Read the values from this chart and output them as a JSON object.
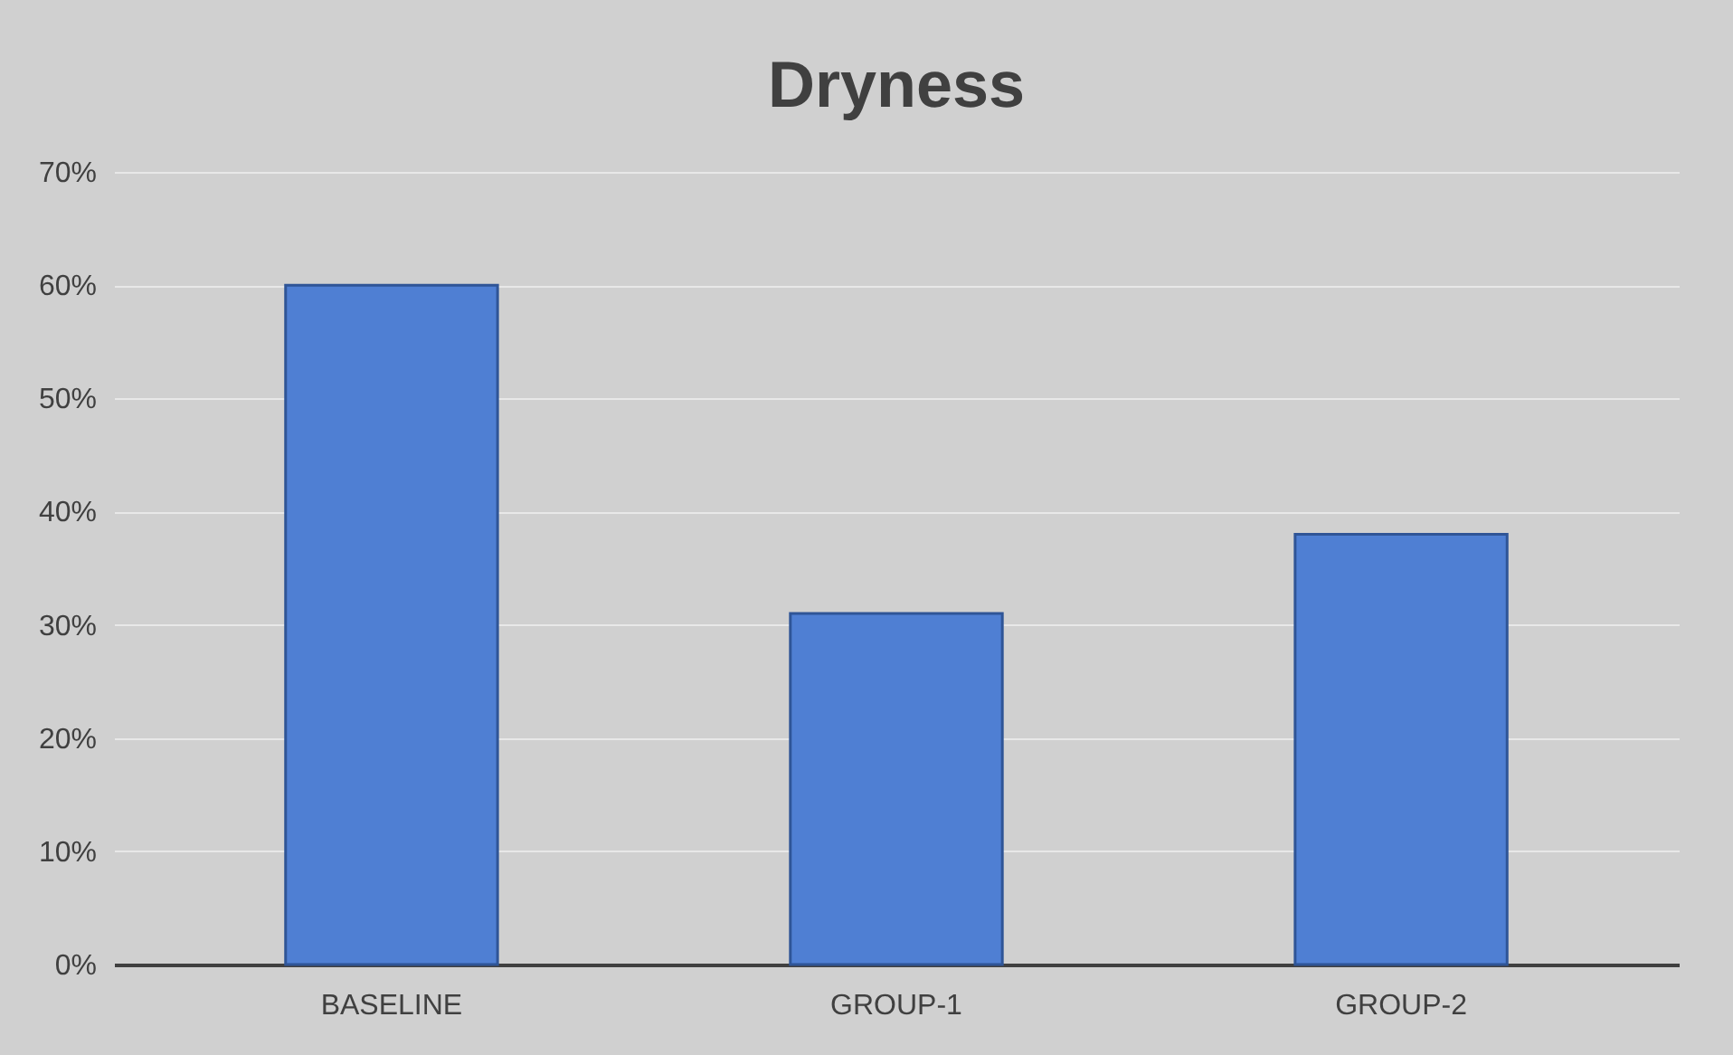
{
  "chart_data": {
    "type": "bar",
    "title": "Dryness",
    "categories": [
      "BASELINE",
      "GROUP-1",
      "GROUP-2"
    ],
    "values": [
      0.6,
      0.31,
      0.38
    ],
    "color": "#4f7fd3",
    "ylim": [
      0,
      0.7
    ],
    "yticks": [
      {
        "value": 0,
        "label": "0%"
      },
      {
        "value": 0.1,
        "label": "10%"
      },
      {
        "value": 0.2,
        "label": "20%"
      },
      {
        "value": 0.3,
        "label": "30%"
      },
      {
        "value": 0.4,
        "label": "40%"
      },
      {
        "value": 0.5,
        "label": "50%"
      },
      {
        "value": 0.6,
        "label": "60%"
      },
      {
        "value": 0.7,
        "label": "70%"
      }
    ],
    "grid": "y"
  }
}
